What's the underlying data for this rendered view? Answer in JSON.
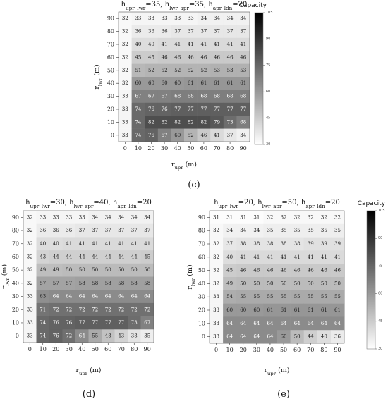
{
  "chart_data": [
    {
      "type": "heatmap",
      "title": "h_upr_lwr=35, h_lwr_apr=35, h_apr_ldn=20",
      "title_parts": [
        {
          "t": "h",
          "sub": "upr_lwr"
        },
        {
          "t": "=35, h",
          "sub": "lwr_apr"
        },
        {
          "t": "=35, h",
          "sub": "apr_ldn"
        },
        {
          "t": "=20"
        }
      ],
      "xlabel": {
        "t": "r",
        "sub": "upr",
        "after": " (m)"
      },
      "ylabel": {
        "t": "r",
        "sub": "lwr",
        "after": " (m)"
      },
      "x": [
        "0",
        "10",
        "20",
        "30",
        "40",
        "50",
        "60",
        "70",
        "80",
        "90"
      ],
      "y": [
        "90",
        "80",
        "70",
        "60",
        "50",
        "40",
        "30",
        "20",
        "10",
        "0"
      ],
      "values": [
        [
          32,
          33,
          33,
          33,
          33,
          33,
          34,
          34,
          34,
          34
        ],
        [
          32,
          36,
          36,
          36,
          37,
          37,
          37,
          37,
          37,
          37
        ],
        [
          32,
          40,
          40,
          41,
          41,
          41,
          41,
          41,
          41,
          41
        ],
        [
          32,
          45,
          45,
          46,
          46,
          46,
          46,
          46,
          46,
          46
        ],
        [
          32,
          51,
          52,
          52,
          52,
          52,
          52,
          53,
          53,
          53
        ],
        [
          32,
          60,
          60,
          60,
          60,
          61,
          61,
          61,
          61,
          61
        ],
        [
          33,
          67,
          67,
          67,
          68,
          68,
          68,
          68,
          68,
          68
        ],
        [
          33,
          74,
          76,
          76,
          77,
          77,
          77,
          77,
          77,
          77
        ],
        [
          33,
          74,
          82,
          82,
          82,
          82,
          82,
          79,
          73,
          68
        ],
        [
          33,
          74,
          76,
          67,
          60,
          52,
          46,
          41,
          37,
          34
        ]
      ],
      "panel_label": "(c)",
      "colorbar": {
        "title": "Capacity",
        "min": 30,
        "max": 105,
        "ticks": [
          "105",
          "90",
          "75",
          "60",
          "45",
          "30"
        ]
      }
    },
    {
      "type": "heatmap",
      "title": "h_upr_lwr=30, h_lwr_apr=40, h_apr_ldn=20",
      "title_parts": [
        {
          "t": "h",
          "sub": "upr_lwr"
        },
        {
          "t": "=30, h",
          "sub": "lwr_apr"
        },
        {
          "t": "=40, h",
          "sub": "apr_ldn"
        },
        {
          "t": "=20"
        }
      ],
      "xlabel": {
        "t": "r",
        "sub": "upr",
        "after": " (m)"
      },
      "ylabel": {
        "t": "r",
        "sub": "lwr",
        "after": " (m)"
      },
      "x": [
        "0",
        "10",
        "20",
        "30",
        "40",
        "50",
        "60",
        "70",
        "80",
        "90"
      ],
      "y": [
        "90",
        "80",
        "70",
        "60",
        "50",
        "40",
        "30",
        "20",
        "10",
        "0"
      ],
      "values": [
        [
          32,
          33,
          33,
          33,
          33,
          34,
          34,
          34,
          34,
          34
        ],
        [
          32,
          36,
          36,
          36,
          37,
          37,
          37,
          37,
          37,
          37
        ],
        [
          32,
          40,
          40,
          41,
          41,
          41,
          41,
          41,
          41,
          41
        ],
        [
          32,
          43,
          44,
          44,
          44,
          44,
          44,
          44,
          44,
          45
        ],
        [
          32,
          49,
          49,
          50,
          50,
          50,
          50,
          50,
          50,
          50
        ],
        [
          32,
          57,
          57,
          57,
          58,
          58,
          58,
          58,
          58,
          58
        ],
        [
          33,
          63,
          64,
          64,
          64,
          64,
          64,
          64,
          64,
          64
        ],
        [
          33,
          71,
          72,
          72,
          72,
          72,
          72,
          72,
          72,
          72
        ],
        [
          33,
          74,
          76,
          76,
          77,
          77,
          77,
          77,
          73,
          67
        ],
        [
          33,
          74,
          76,
          72,
          64,
          55,
          48,
          43,
          38,
          35
        ]
      ],
      "panel_label": "(d)",
      "colorbar": null
    },
    {
      "type": "heatmap",
      "title": "h_upr_lwr=20, h_lwr_apr=50, h_apr_ldn=20",
      "title_parts": [
        {
          "t": "h",
          "sub": "upr_lwr"
        },
        {
          "t": "=20, h",
          "sub": "lwr_apr"
        },
        {
          "t": "=50, h",
          "sub": "apr_ldn"
        },
        {
          "t": "=20"
        }
      ],
      "xlabel": {
        "t": "r",
        "sub": "upr",
        "after": " (m)"
      },
      "ylabel": {
        "t": "r",
        "sub": "lwr",
        "after": " (m)"
      },
      "x": [
        "0",
        "10",
        "20",
        "30",
        "40",
        "50",
        "60",
        "70",
        "80",
        "90"
      ],
      "y": [
        "90",
        "80",
        "70",
        "60",
        "50",
        "40",
        "30",
        "20",
        "10",
        "0"
      ],
      "values": [
        [
          31,
          31,
          31,
          31,
          32,
          32,
          32,
          32,
          32,
          32
        ],
        [
          32,
          34,
          34,
          34,
          35,
          35,
          35,
          35,
          35,
          35
        ],
        [
          32,
          37,
          38,
          38,
          38,
          38,
          38,
          39,
          39,
          39
        ],
        [
          32,
          40,
          41,
          41,
          41,
          41,
          41,
          41,
          41,
          41
        ],
        [
          32,
          45,
          46,
          46,
          46,
          46,
          46,
          46,
          46,
          46
        ],
        [
          32,
          49,
          50,
          50,
          50,
          50,
          50,
          50,
          50,
          50
        ],
        [
          33,
          54,
          55,
          55,
          55,
          55,
          55,
          55,
          55,
          55
        ],
        [
          33,
          60,
          60,
          60,
          61,
          61,
          61,
          61,
          61,
          61
        ],
        [
          33,
          64,
          64,
          64,
          64,
          64,
          64,
          64,
          64,
          64
        ],
        [
          33,
          64,
          64,
          64,
          64,
          60,
          50,
          44,
          40,
          36
        ]
      ],
      "panel_label": "(e)",
      "colorbar": {
        "title": "Capacity",
        "min": 30,
        "max": 105,
        "ticks": [
          "105",
          "90",
          "75",
          "60",
          "45",
          "30"
        ]
      }
    }
  ]
}
